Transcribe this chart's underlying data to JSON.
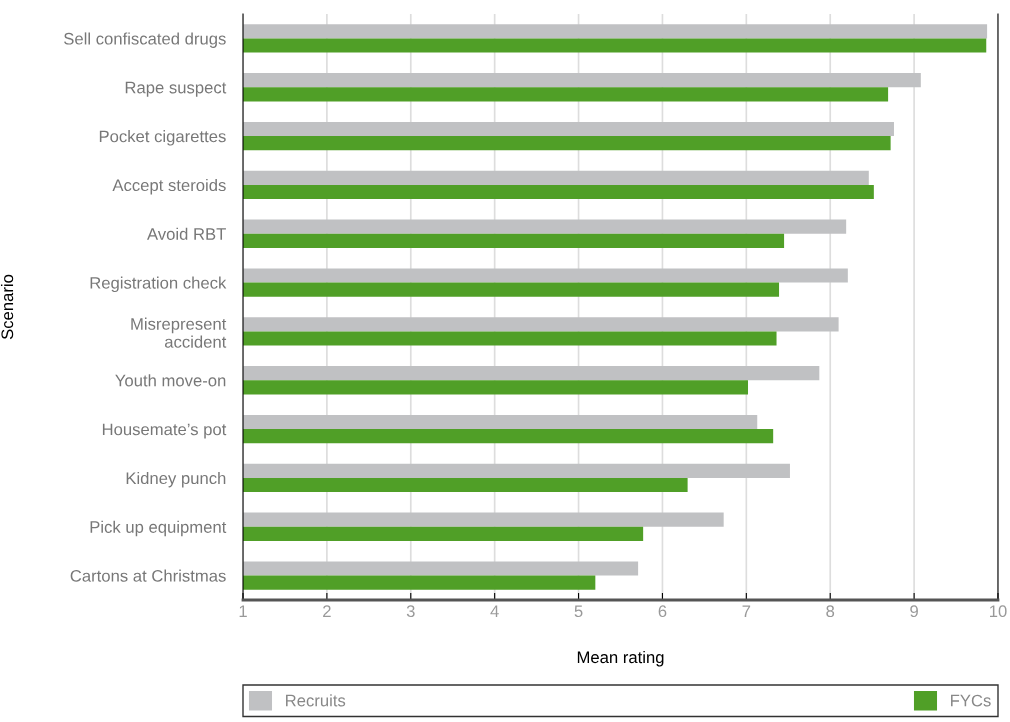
{
  "chart_data": {
    "type": "bar",
    "orientation": "horizontal",
    "xlabel": "Mean rating",
    "ylabel": "Scenario",
    "categories": [
      "Sell confiscated drugs",
      "Rape suspect",
      "Pocket cigarettes",
      "Accept steroids",
      "Avoid RBT",
      "Registration check",
      "Misrepresent\naccident",
      "Youth move-on",
      "Housemate’s pot",
      "Kidney punch",
      "Pick up equipment",
      "Cartons at Christmas"
    ],
    "series": [
      {
        "name": "Recruits",
        "color": "#c0c1c3",
        "values": [
          9.87,
          9.08,
          8.76,
          8.46,
          8.19,
          8.21,
          8.1,
          7.87,
          7.13,
          7.52,
          6.73,
          5.71
        ]
      },
      {
        "name": "FYCs",
        "color": "#509f27",
        "values": [
          9.86,
          8.69,
          8.72,
          8.52,
          7.45,
          7.39,
          7.36,
          7.02,
          7.32,
          6.3,
          5.77,
          5.2
        ]
      }
    ],
    "xlim": [
      1,
      10
    ],
    "xticks": [
      1,
      2,
      3,
      4,
      5,
      6,
      7,
      8,
      9,
      10
    ],
    "grid": "x",
    "legend": "bottom"
  }
}
